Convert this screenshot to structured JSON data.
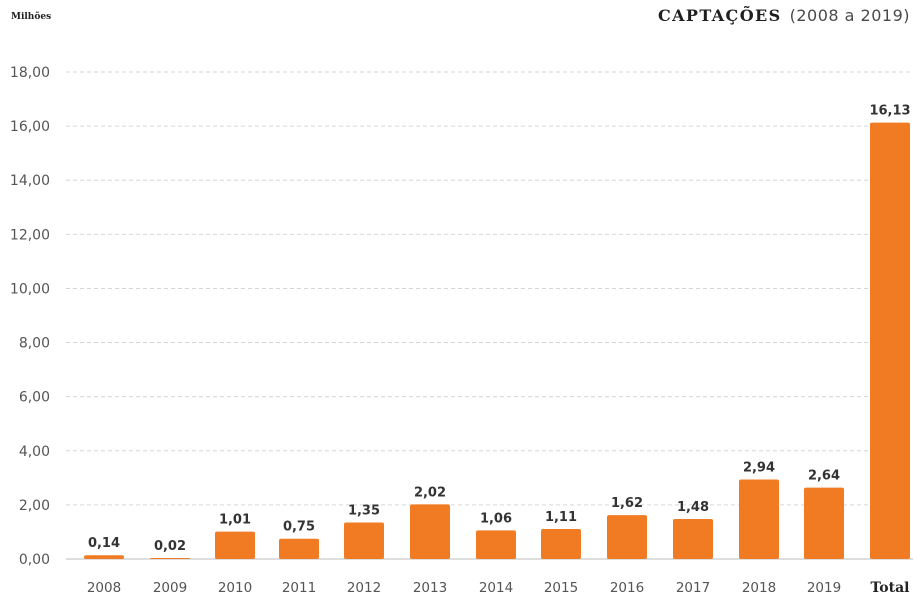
{
  "chart_data": {
    "type": "bar",
    "title": "CAPTAÇÕES",
    "subtitle": "(2008 a 2019)",
    "ylabel": "Milhões",
    "xlabel": "",
    "ylim": [
      0,
      18
    ],
    "yticks": [
      "0,00",
      "2,00",
      "4,00",
      "6,00",
      "8,00",
      "10,00",
      "12,00",
      "14,00",
      "16,00",
      "18,00"
    ],
    "grid": true,
    "bar_color": "#f07b22",
    "categories": [
      "2008",
      "2009",
      "2010",
      "2011",
      "2012",
      "2013",
      "2014",
      "2015",
      "2016",
      "2017",
      "2018",
      "2019",
      "Total"
    ],
    "values": [
      0.14,
      0.02,
      1.01,
      0.75,
      1.35,
      2.02,
      1.06,
      1.11,
      1.62,
      1.48,
      2.94,
      2.64,
      16.13
    ],
    "value_labels": [
      "0,14",
      "0,02",
      "1,01",
      "0,75",
      "1,35",
      "2,02",
      "1,06",
      "1,11",
      "1,62",
      "1,48",
      "2,94",
      "2,64",
      "16,13"
    ]
  }
}
